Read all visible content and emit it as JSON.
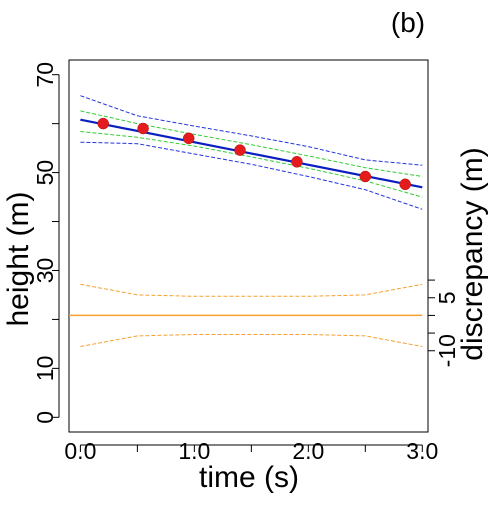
{
  "panel_label": "(b)",
  "chart_data": {
    "type": "scatter",
    "xlabel": "time (s)",
    "ylabel": "height (m)",
    "y2label": "discrepancy (m)",
    "xlim": [
      -0.1,
      3.05
    ],
    "ylim": [
      -3,
      73
    ],
    "y2lim": [
      -33,
      72.3
    ],
    "x_ticks": [
      {
        "v": 0,
        "t": "0.0"
      },
      {
        "v": 1,
        "t": "1.0"
      },
      {
        "v": 2,
        "t": "2.0"
      },
      {
        "v": 3,
        "t": "3.0"
      }
    ],
    "x_minor_ticks": [
      0.5,
      1.5,
      2.5
    ],
    "y_ticks": [
      {
        "v": 0,
        "t": "0"
      },
      {
        "v": 10,
        "t": "10"
      },
      {
        "v": 30,
        "t": "30"
      },
      {
        "v": 50,
        "t": "50"
      },
      {
        "v": 70,
        "t": "70"
      }
    ],
    "y_minor_ticks": [
      20,
      40,
      60
    ],
    "y2_ticks": [
      {
        "v": -10,
        "t": "-10"
      },
      {
        "v": 5,
        "t": "5"
      }
    ],
    "y2_minor_ticks": [
      -5,
      0,
      10
    ],
    "grid": false,
    "observations": {
      "color": "#e41a1c",
      "x": [
        0.2,
        0.55,
        0.95,
        1.4,
        1.9,
        2.5,
        2.85
      ],
      "y": [
        60.0,
        59.0,
        57.0,
        54.6,
        52.2,
        49.2,
        47.6
      ]
    },
    "series": [
      {
        "key": "fit",
        "color": "#0b1fbf",
        "dash": false,
        "width": 2.2,
        "x": [
          0.0,
          3.0
        ],
        "y": [
          60.8,
          47.0
        ]
      },
      {
        "key": "fit-upper-inner",
        "color": "#33cc33",
        "dash": true,
        "width": 1,
        "x": [
          0.0,
          0.5,
          1.0,
          1.5,
          2.0,
          2.5,
          3.0
        ],
        "y": [
          62.6,
          60.0,
          57.8,
          55.7,
          53.4,
          51.0,
          49.2
        ]
      },
      {
        "key": "fit-lower-inner",
        "color": "#33cc33",
        "dash": true,
        "width": 1,
        "x": [
          0.0,
          0.5,
          1.0,
          1.5,
          2.0,
          2.5,
          3.0
        ],
        "y": [
          58.4,
          57.2,
          55.4,
          53.2,
          50.9,
          48.3,
          45.0
        ]
      },
      {
        "key": "fit-upper-outer",
        "color": "#2233dd",
        "dash": true,
        "width": 1,
        "x": [
          0.0,
          0.5,
          1.0,
          1.5,
          2.0,
          2.5,
          3.0
        ],
        "y": [
          65.7,
          61.6,
          59.5,
          57.5,
          55.3,
          52.6,
          51.5
        ]
      },
      {
        "key": "fit-lower-outer",
        "color": "#2233dd",
        "dash": true,
        "width": 1,
        "x": [
          0.0,
          0.5,
          1.0,
          1.5,
          2.0,
          2.5,
          3.0
        ],
        "y": [
          56.2,
          55.9,
          53.8,
          51.7,
          49.2,
          46.5,
          42.5
        ]
      },
      {
        "key": "discrepancy",
        "axis": "y2",
        "color": "#f5a030",
        "dash": false,
        "width": 1.5,
        "x": [
          -0.1,
          3.0
        ],
        "y": [
          0.0,
          0.0
        ]
      },
      {
        "key": "discrepancy-upper",
        "axis": "y2",
        "color": "#f5a030",
        "dash": true,
        "width": 1,
        "x": [
          0.0,
          0.5,
          1.0,
          1.5,
          2.0,
          2.5,
          3.0
        ],
        "y": [
          8.8,
          5.8,
          5.4,
          5.4,
          5.4,
          5.8,
          8.8
        ]
      },
      {
        "key": "discrepancy-lower",
        "axis": "y2",
        "color": "#f5a030",
        "dash": true,
        "width": 1,
        "x": [
          0.0,
          0.5,
          1.0,
          1.5,
          2.0,
          2.5,
          3.0
        ],
        "y": [
          -8.8,
          -5.8,
          -5.4,
          -5.4,
          -5.4,
          -5.8,
          -8.8
        ]
      }
    ]
  }
}
